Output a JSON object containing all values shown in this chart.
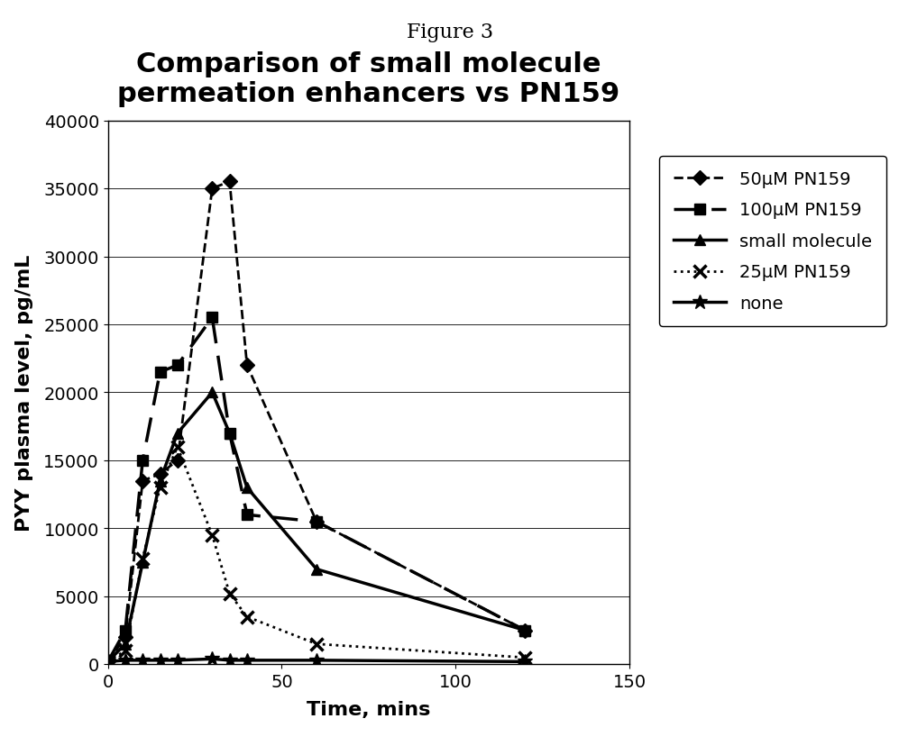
{
  "title": "Comparison of small molecule\npermeation enhancers vs PN159",
  "xlabel": "Time, mins",
  "ylabel": "PYY plasma level, pg/mL",
  "figure_title": "Figure 3",
  "xlim": [
    0,
    150
  ],
  "ylim": [
    0,
    40000
  ],
  "xticks": [
    0,
    50,
    100,
    150
  ],
  "yticks": [
    0,
    5000,
    10000,
    15000,
    20000,
    25000,
    30000,
    35000,
    40000
  ],
  "series": [
    {
      "label": "50μM PN159",
      "x": [
        0,
        5,
        10,
        15,
        20,
        30,
        35,
        40,
        60,
        120
      ],
      "y": [
        200,
        2000,
        13500,
        14000,
        15000,
        35000,
        35500,
        22000,
        10500,
        2500
      ],
      "color": "#000000",
      "linestyle": "--",
      "linewidth": 2.0,
      "marker": "D",
      "markersize": 8,
      "markerfacecolor": "#000000"
    },
    {
      "label": "100μM PN159",
      "x": [
        0,
        5,
        10,
        15,
        20,
        30,
        35,
        40,
        60,
        120
      ],
      "y": [
        200,
        2500,
        15000,
        21500,
        22000,
        25500,
        17000,
        11000,
        10500,
        2500
      ],
      "color": "#000000",
      "linestyle": "--",
      "linewidth": 2.5,
      "marker": "s",
      "markersize": 9,
      "markerfacecolor": "#000000",
      "dashes": [
        8,
        4
      ]
    },
    {
      "label": "small molecule",
      "x": [
        0,
        5,
        10,
        15,
        20,
        30,
        35,
        40,
        60,
        120
      ],
      "y": [
        200,
        1500,
        7500,
        13500,
        17000,
        20000,
        17000,
        13000,
        7000,
        2500
      ],
      "color": "#000000",
      "linestyle": "-",
      "linewidth": 2.5,
      "marker": "^",
      "markersize": 9,
      "markerfacecolor": "#000000"
    },
    {
      "label": "25μM PN159",
      "x": [
        0,
        5,
        10,
        15,
        20,
        30,
        35,
        40,
        60,
        120
      ],
      "y": [
        200,
        1000,
        7800,
        13000,
        16000,
        9500,
        5200,
        3500,
        1500,
        500
      ],
      "color": "#000000",
      "linestyle": ":",
      "linewidth": 2.0,
      "marker": "x",
      "markersize": 10,
      "markerfacecolor": "#000000",
      "markeredgewidth": 2.5
    },
    {
      "label": "none",
      "x": [
        0,
        5,
        10,
        15,
        20,
        30,
        35,
        40,
        60,
        120
      ],
      "y": [
        200,
        300,
        300,
        300,
        300,
        400,
        300,
        300,
        300,
        200
      ],
      "color": "#000000",
      "linestyle": "-",
      "linewidth": 2.5,
      "marker": "*",
      "markersize": 12,
      "markerfacecolor": "#000000"
    }
  ],
  "background_color": "#ffffff",
  "plot_bg_color": "#ffffff",
  "grid_color": "#000000",
  "title_fontsize": 22,
  "label_fontsize": 16,
  "tick_fontsize": 14,
  "legend_fontsize": 14
}
